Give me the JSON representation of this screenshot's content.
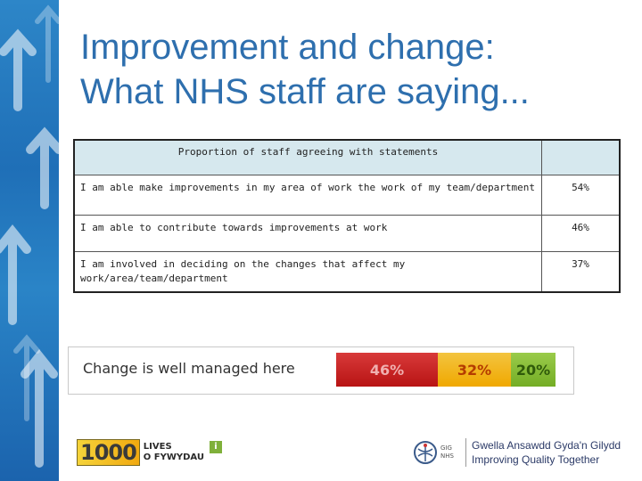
{
  "slide": {
    "title_line1": "Improvement and change:",
    "title_line2": "What NHS staff are saying...",
    "accent_color": "#2e6fae"
  },
  "statements_table": {
    "header": "Proportion of staff agreeing with statements",
    "header_value": "",
    "rows": [
      {
        "statement": "I am able make improvements in my area of work the work of my team/department",
        "value": "54%"
      },
      {
        "statement": "I am able to contribute towards improvements at work",
        "value": "46%"
      },
      {
        "statement": "I am involved in deciding on the changes that affect my work/area/team/department",
        "value": "37%"
      }
    ]
  },
  "change_bar": {
    "label": "Change is well managed here",
    "segments": [
      {
        "label": "46%",
        "value": 46,
        "color": "#c62424"
      },
      {
        "label": "32%",
        "value": 32,
        "color": "#f2b51c"
      },
      {
        "label": "20%",
        "value": 20,
        "color": "#86bc36"
      }
    ]
  },
  "logos": {
    "lives_number": "1000",
    "lives_line1": "LIVES",
    "lives_line2": "O FYWYDAU",
    "lives_badge": "i",
    "nhs_abbrev_1": "GIG",
    "nhs_abbrev_2": "NHS",
    "slogan_welsh": "Gwella Ansawdd Gyda'n Gilydd",
    "slogan_english": "Improving Quality Together"
  }
}
